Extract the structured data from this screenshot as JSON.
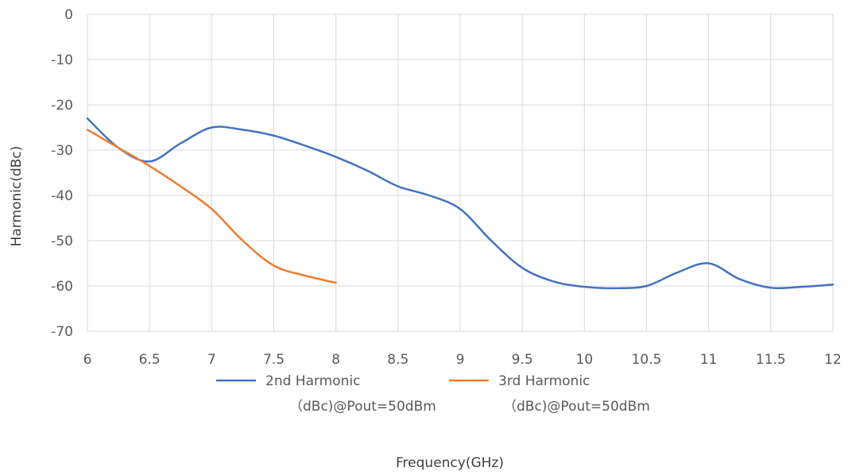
{
  "chart_data": {
    "type": "line",
    "title": "",
    "xlabel": "Frequency(GHz)",
    "ylabel": "Harmonic(dBc)",
    "xlim": [
      6,
      12
    ],
    "ylim": [
      -70,
      0
    ],
    "x_ticks": [
      "6",
      "6.5",
      "7",
      "7.5",
      "8",
      "8.5",
      "9",
      "9.5",
      "10",
      "10.5",
      "11",
      "11.5",
      "12"
    ],
    "y_ticks": [
      "0",
      "-10",
      "-20",
      "-30",
      "-40",
      "-50",
      "-60",
      "-70"
    ],
    "grid": true,
    "legend_position": "bottom",
    "series": [
      {
        "name_line1": "2nd Harmonic",
        "name_line2": "（dBc)@Pout=50dBm",
        "color": "#4472C4",
        "x": [
          6,
          6.25,
          6.5,
          6.75,
          7,
          7.25,
          7.5,
          7.75,
          8,
          8.25,
          8.5,
          8.75,
          9,
          9.25,
          9.5,
          9.75,
          10,
          10.25,
          10.5,
          10.75,
          11,
          11.25,
          11.5,
          11.75,
          12
        ],
        "y": [
          -23,
          -29.5,
          -32.5,
          -28.5,
          -25,
          -25.5,
          -26.8,
          -29,
          -31.5,
          -34.5,
          -38,
          -40,
          -43,
          -50,
          -56,
          -59,
          -60.2,
          -60.5,
          -60,
          -57,
          -55,
          -58.5,
          -60.4,
          -60.2,
          -59.7
        ]
      },
      {
        "name_line1": "3rd Harmonic",
        "name_line2": "（dBc)@Pout=50dBm",
        "color": "#ED7D31",
        "x": [
          6,
          6.25,
          6.5,
          6.75,
          7,
          7.25,
          7.5,
          7.75,
          8
        ],
        "y": [
          -25.5,
          -29.5,
          -33.5,
          -38,
          -43,
          -50,
          -55.5,
          -57.7,
          -59.3
        ]
      }
    ]
  }
}
